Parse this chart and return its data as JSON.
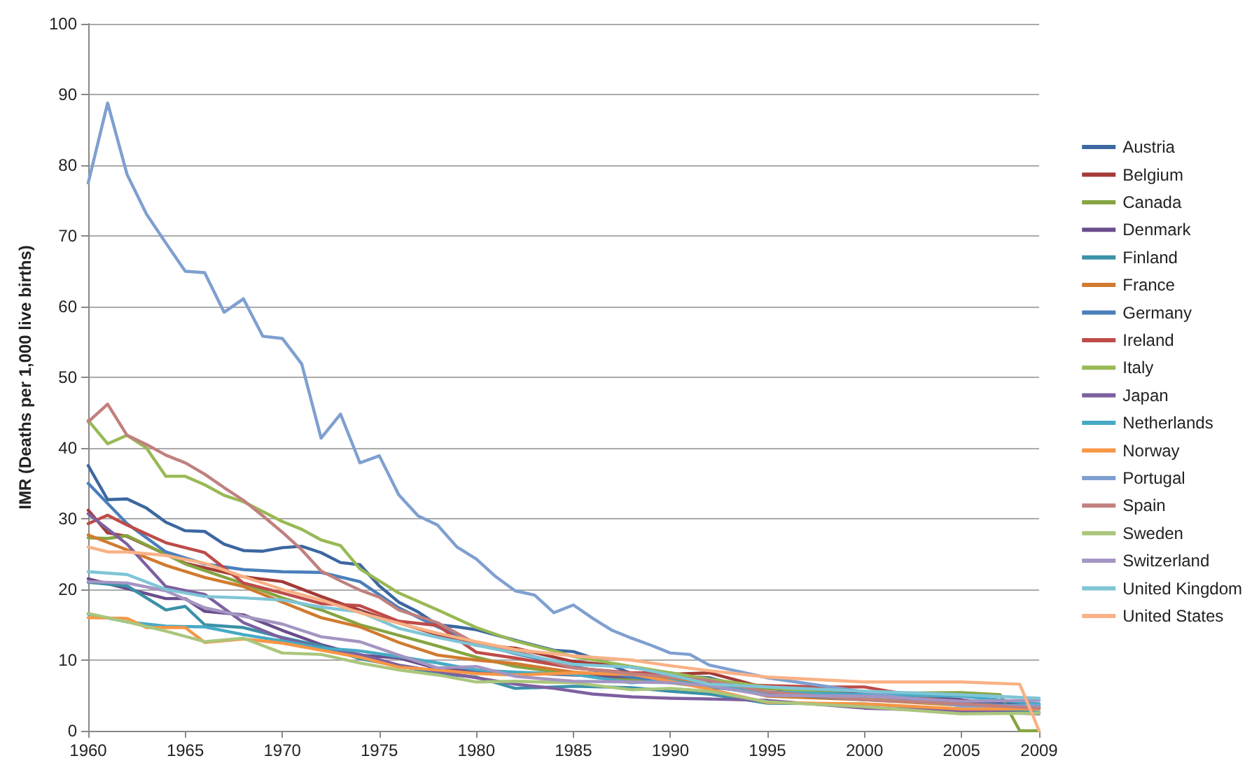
{
  "chart_data": {
    "type": "line",
    "ylabel": "IMR (Deaths per 1,000 live births)",
    "xlim": [
      1960,
      2009
    ],
    "xticks": [
      1960,
      1965,
      1970,
      1975,
      1980,
      1985,
      1990,
      1995,
      2000,
      2005,
      2009
    ],
    "ylim": [
      0,
      100
    ],
    "yticks": [
      0,
      10,
      20,
      30,
      40,
      50,
      60,
      70,
      80,
      90,
      100
    ],
    "grid": "y",
    "legend": "right",
    "marker": "none",
    "line_style": "solid",
    "series": [
      {
        "name": "Austria",
        "color": "#3c67a0",
        "x": [
          1960,
          1961,
          1962,
          1963,
          1964,
          1965,
          1966,
          1967,
          1968,
          1969,
          1970,
          1971,
          1972,
          1973,
          1974,
          1975,
          1976,
          1977,
          1978,
          1979,
          1980,
          1982,
          1984,
          1985,
          1986,
          1988,
          1990,
          1992,
          1995,
          2000,
          2005,
          2009
        ],
        "values": [
          37.5,
          32.7,
          32.8,
          31.5,
          29.5,
          28.3,
          28.2,
          26.4,
          25.5,
          25.4,
          25.9,
          26.1,
          25.2,
          23.8,
          23.5,
          20.5,
          18.2,
          16.8,
          15,
          14.7,
          14.3,
          12.8,
          11.4,
          11.2,
          10.3,
          8.1,
          7.8,
          7.5,
          5.4,
          4.8,
          4.2,
          3.8
        ]
      },
      {
        "name": "Belgium",
        "color": "#a33a37",
        "x": [
          1960,
          1961,
          1962,
          1965,
          1968,
          1970,
          1972,
          1975,
          1978,
          1980,
          1982,
          1985,
          1988,
          1990,
          1992,
          1995,
          2000,
          2005,
          2009
        ],
        "values": [
          31.2,
          28,
          27.5,
          23.7,
          21.8,
          21.1,
          19,
          16.1,
          13.6,
          12.1,
          11.7,
          9.8,
          9,
          8,
          8.2,
          6,
          4.8,
          3.7,
          3.4
        ]
      },
      {
        "name": "Canada",
        "color": "#86a441",
        "x": [
          1960,
          1961,
          1962,
          1963,
          1965,
          1968,
          1970,
          1972,
          1974,
          1976,
          1978,
          1980,
          1982,
          1985,
          1988,
          1990,
          1992,
          1995,
          2000,
          2005,
          2007,
          2008,
          2009
        ],
        "values": [
          27.3,
          27.2,
          27.6,
          26.3,
          23.6,
          20.8,
          18.8,
          17.1,
          15,
          13.5,
          12,
          10.4,
          9.1,
          8,
          7.2,
          6.8,
          6.1,
          6,
          5.3,
          5.4,
          5.1,
          0,
          0
        ]
      },
      {
        "name": "Denmark",
        "color": "#6a4d8c",
        "x": [
          1960,
          1962,
          1964,
          1965,
          1966,
          1968,
          1970,
          1972,
          1974,
          1976,
          1978,
          1980,
          1982,
          1985,
          1988,
          1990,
          1992,
          1995,
          2000,
          2005,
          2009
        ],
        "values": [
          21.5,
          20.1,
          18.7,
          18.7,
          16.9,
          16.4,
          14.2,
          12.2,
          10.7,
          10.3,
          8.8,
          8.4,
          8.2,
          7.9,
          7.6,
          7.5,
          6.6,
          5.1,
          5.3,
          4.4,
          3.1
        ]
      },
      {
        "name": "Finland",
        "color": "#3a91a8",
        "x": [
          1960,
          1962,
          1964,
          1965,
          1966,
          1967,
          1968,
          1970,
          1972,
          1974,
          1976,
          1978,
          1980,
          1982,
          1985,
          1988,
          1990,
          1992,
          1995,
          2000,
          2005,
          2009
        ],
        "values": [
          21,
          20.5,
          17.1,
          17.6,
          15,
          14.8,
          14.6,
          13.2,
          12,
          10.2,
          9.2,
          8.1,
          7.6,
          6,
          6.3,
          6.1,
          5.6,
          5.2,
          3.9,
          3.8,
          3,
          2.6
        ]
      },
      {
        "name": "France",
        "color": "#d07b2f",
        "x": [
          1960,
          1962,
          1964,
          1966,
          1968,
          1970,
          1972,
          1974,
          1976,
          1978,
          1980,
          1982,
          1985,
          1988,
          1990,
          1992,
          1995,
          2000,
          2005,
          2009
        ],
        "values": [
          27.7,
          25.6,
          23.4,
          21.7,
          20.4,
          18.2,
          16,
          14.7,
          12.5,
          10.7,
          10,
          9.5,
          8.3,
          7.8,
          7.3,
          6.8,
          4.9,
          4.4,
          3.6,
          3.3
        ]
      },
      {
        "name": "Germany",
        "color": "#4a7ebb",
        "x": [
          1960,
          1962,
          1964,
          1966,
          1968,
          1970,
          1972,
          1974,
          1976,
          1978,
          1980,
          1982,
          1985,
          1988,
          1990,
          1992,
          1995,
          2000,
          2005,
          2009
        ],
        "values": [
          35,
          29.3,
          25.3,
          23.6,
          22.8,
          22.5,
          22.4,
          21.1,
          17.4,
          14.7,
          12.4,
          10.9,
          9.1,
          7.6,
          7,
          6.2,
          5.3,
          4.4,
          3.9,
          3.5
        ]
      },
      {
        "name": "Ireland",
        "color": "#be4b48",
        "x": [
          1960,
          1961,
          1962,
          1964,
          1966,
          1968,
          1970,
          1972,
          1974,
          1976,
          1978,
          1980,
          1982,
          1985,
          1988,
          1990,
          1992,
          1995,
          1998,
          2000,
          2005,
          2009
        ],
        "values": [
          29.3,
          30.5,
          29.1,
          26.6,
          25.2,
          20.9,
          19.5,
          18,
          17.7,
          15.5,
          14.9,
          11.1,
          10.3,
          8.9,
          8.2,
          8.2,
          6.7,
          6.4,
          6.2,
          6.2,
          3.8,
          3.3
        ]
      },
      {
        "name": "Italy",
        "color": "#98b954",
        "x": [
          1960,
          1961,
          1962,
          1963,
          1964,
          1965,
          1966,
          1967,
          1968,
          1970,
          1971,
          1972,
          1973,
          1974,
          1975,
          1976,
          1978,
          1980,
          1982,
          1984,
          1985,
          1988,
          1990,
          1992,
          1995,
          2000,
          2005,
          2009
        ],
        "values": [
          43.9,
          40.6,
          41.8,
          40,
          36,
          36,
          34.8,
          33.3,
          32.4,
          29.6,
          28.5,
          27,
          26.2,
          22.9,
          21.2,
          19.5,
          17.1,
          14.6,
          12.7,
          11.3,
          10.5,
          9.1,
          8.2,
          7.3,
          6.2,
          4.5,
          3.7,
          3.4
        ]
      },
      {
        "name": "Japan",
        "color": "#7d60a0",
        "x": [
          1960,
          1962,
          1964,
          1966,
          1968,
          1970,
          1972,
          1974,
          1976,
          1978,
          1980,
          1982,
          1984,
          1986,
          1988,
          1990,
          1992,
          1995,
          2000,
          2005,
          2009
        ],
        "values": [
          30.7,
          26.4,
          20.4,
          19.3,
          15.3,
          13.1,
          11.7,
          10.8,
          9.3,
          8.4,
          7.5,
          6.6,
          6,
          5.2,
          4.8,
          4.6,
          4.5,
          4.3,
          3.2,
          2.8,
          2.4
        ]
      },
      {
        "name": "Netherlands",
        "color": "#46aac5",
        "x": [
          1960,
          1962,
          1964,
          1966,
          1968,
          1970,
          1972,
          1974,
          1976,
          1978,
          1980,
          1982,
          1985,
          1988,
          1990,
          1992,
          1995,
          2000,
          2005,
          2009
        ],
        "values": [
          16.5,
          15.4,
          14.8,
          14.7,
          13.6,
          12.7,
          11.7,
          11.3,
          10.5,
          9.6,
          8.6,
          8.3,
          8,
          6.8,
          7.1,
          6.3,
          5.5,
          5.1,
          4.9,
          3.8
        ]
      },
      {
        "name": "Norway",
        "color": "#f79646",
        "x": [
          1960,
          1962,
          1963,
          1965,
          1966,
          1968,
          1970,
          1972,
          1974,
          1976,
          1978,
          1980,
          1982,
          1985,
          1988,
          1990,
          1992,
          1995,
          2000,
          2005,
          2009
        ],
        "values": [
          16,
          15.9,
          14.6,
          14.6,
          12.5,
          13,
          12.4,
          11.4,
          10.4,
          9,
          8.6,
          8.1,
          7.9,
          8.2,
          8,
          7,
          5.9,
          4,
          3.8,
          3.1,
          3.1
        ]
      },
      {
        "name": "Portugal",
        "color": "#7f9fd0",
        "x": [
          1960,
          1961,
          1962,
          1963,
          1964,
          1965,
          1966,
          1967,
          1968,
          1969,
          1970,
          1971,
          1972,
          1973,
          1974,
          1975,
          1976,
          1977,
          1978,
          1979,
          1980,
          1981,
          1982,
          1983,
          1984,
          1985,
          1986,
          1987,
          1988,
          1989,
          1990,
          1991,
          1992,
          1993,
          1994,
          1995,
          2000,
          2005,
          2009
        ],
        "values": [
          77.5,
          88.8,
          78.7,
          73.1,
          69,
          65,
          64.8,
          59.2,
          61.1,
          55.8,
          55.5,
          51.9,
          41.4,
          44.8,
          37.9,
          38.9,
          33.4,
          30.4,
          29.1,
          26,
          24.3,
          21.8,
          19.8,
          19.2,
          16.7,
          17.8,
          15.9,
          14.2,
          13.1,
          12.1,
          11,
          10.8,
          9.3,
          8.7,
          8.1,
          7.5,
          5.5,
          3.5,
          3.6
        ]
      },
      {
        "name": "Spain",
        "color": "#c0807f",
        "x": [
          1960,
          1961,
          1962,
          1963,
          1964,
          1965,
          1966,
          1967,
          1968,
          1969,
          1970,
          1971,
          1972,
          1973,
          1974,
          1975,
          1976,
          1978,
          1980,
          1982,
          1985,
          1988,
          1990,
          1992,
          1995,
          2000,
          2005,
          2009
        ],
        "values": [
          43.7,
          46.2,
          41.8,
          40.5,
          39,
          37.9,
          36.3,
          34.4,
          32.6,
          30.4,
          28.1,
          25.6,
          22.6,
          21.2,
          19.9,
          18.9,
          17.1,
          15.3,
          12.3,
          11.3,
          8.9,
          8.1,
          7.6,
          7.1,
          5.5,
          4.4,
          3.8,
          3.2
        ]
      },
      {
        "name": "Sweden",
        "color": "#aac67c",
        "x": [
          1960,
          1962,
          1964,
          1966,
          1968,
          1970,
          1972,
          1974,
          1976,
          1978,
          1980,
          1982,
          1985,
          1988,
          1990,
          1992,
          1995,
          2000,
          2005,
          2009
        ],
        "values": [
          16.6,
          15.4,
          14.1,
          12.6,
          13.1,
          11,
          10.8,
          9.6,
          8.6,
          7.9,
          6.9,
          7,
          6.8,
          5.8,
          6,
          5.6,
          4.1,
          3.4,
          2.4,
          2.5
        ]
      },
      {
        "name": "Switzerland",
        "color": "#a495c2",
        "x": [
          1960,
          1962,
          1964,
          1966,
          1968,
          1970,
          1972,
          1974,
          1976,
          1978,
          1980,
          1982,
          1985,
          1988,
          1990,
          1992,
          1995,
          2000,
          2005,
          2009
        ],
        "values": [
          21.1,
          20.9,
          19.8,
          17.4,
          16.2,
          15.1,
          13.3,
          12.6,
          10.7,
          8.9,
          9.1,
          7.7,
          7,
          6.9,
          6.8,
          6.4,
          5,
          4.9,
          4.2,
          4.3
        ]
      },
      {
        "name": "United Kingdom",
        "color": "#7ec5d6",
        "x": [
          1960,
          1962,
          1964,
          1966,
          1968,
          1970,
          1972,
          1974,
          1976,
          1978,
          1980,
          1982,
          1985,
          1988,
          1990,
          1992,
          1995,
          2000,
          2005,
          2009
        ],
        "values": [
          22.5,
          22.1,
          20,
          19,
          18.8,
          18.5,
          17.5,
          16.8,
          14.5,
          13.2,
          12.1,
          11,
          9.4,
          9,
          7.9,
          6.6,
          6.2,
          5.6,
          5.1,
          4.6
        ]
      },
      {
        "name": "United States",
        "color": "#f9b185",
        "x": [
          1960,
          1961,
          1962,
          1964,
          1966,
          1968,
          1970,
          1972,
          1974,
          1976,
          1978,
          1980,
          1982,
          1985,
          1988,
          1990,
          1992,
          1995,
          2000,
          2005,
          2008,
          2009
        ],
        "values": [
          26,
          25.3,
          25.3,
          24.8,
          23.7,
          21.8,
          20,
          18.5,
          16.7,
          15.2,
          13.8,
          12.6,
          11.5,
          10.6,
          10,
          9.2,
          8.5,
          7.6,
          6.9,
          6.9,
          6.6,
          0
        ]
      }
    ]
  }
}
